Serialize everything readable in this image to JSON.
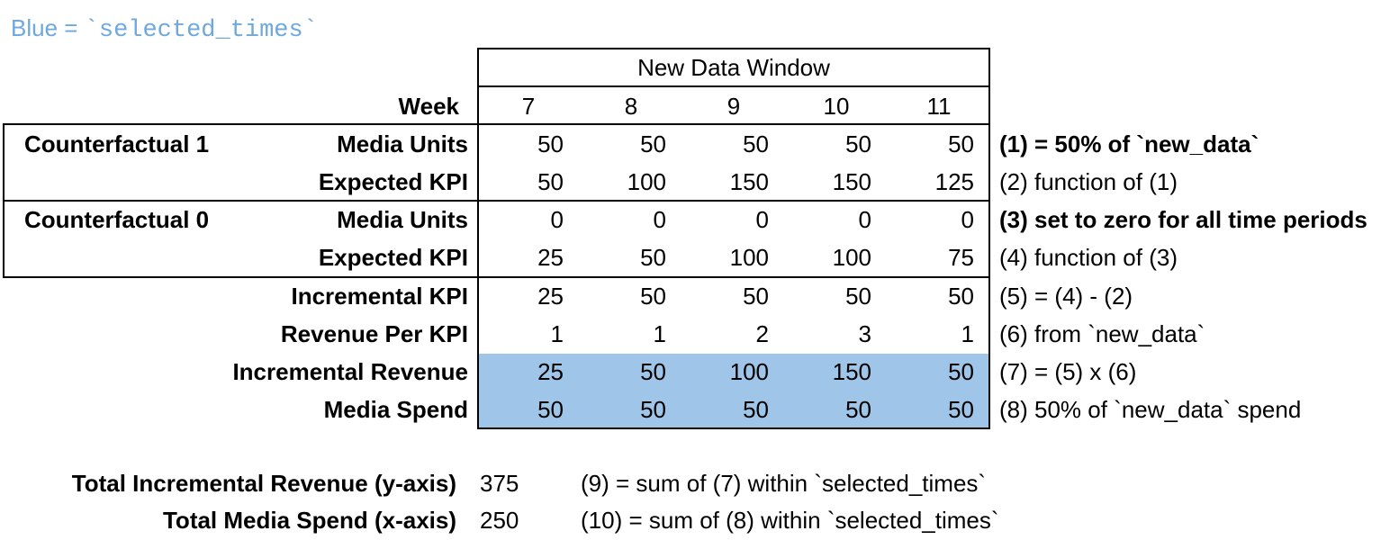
{
  "legend": {
    "prefix": "Blue = ",
    "code": "`selected_times`"
  },
  "colors": {
    "highlight": "#9fc5e8",
    "legend_text": "#6fa8dc",
    "border": "#000000"
  },
  "table": {
    "window_title": "New Data Window",
    "week_label": "Week",
    "weeks": [
      "7",
      "8",
      "9",
      "10",
      "11"
    ],
    "rows": [
      {
        "group": "Counterfactual 1",
        "label": "Media Units",
        "values": [
          "50",
          "50",
          "50",
          "50",
          "50"
        ],
        "note": "(1) = 50% of `new_data`",
        "note_bold": true,
        "highlight": false
      },
      {
        "group": "",
        "label": "Expected KPI",
        "values": [
          "50",
          "100",
          "150",
          "150",
          "125"
        ],
        "note": "(2) function of (1)",
        "note_bold": false,
        "highlight": false
      },
      {
        "group": "Counterfactual 0",
        "label": "Media Units",
        "values": [
          "0",
          "0",
          "0",
          "0",
          "0"
        ],
        "note": "(3) set to zero for all time periods",
        "note_bold": true,
        "highlight": false
      },
      {
        "group": "",
        "label": "Expected KPI",
        "values": [
          "25",
          "50",
          "100",
          "100",
          "75"
        ],
        "note": "(4) function of (3)",
        "note_bold": false,
        "highlight": false
      },
      {
        "group": "",
        "label": "Incremental KPI",
        "values": [
          "25",
          "50",
          "50",
          "50",
          "50"
        ],
        "note": "(5) = (4) - (2)",
        "note_bold": false,
        "highlight": false
      },
      {
        "group": "",
        "label": "Revenue Per KPI",
        "values": [
          "1",
          "1",
          "2",
          "3",
          "1"
        ],
        "note": "(6) from `new_data`",
        "note_bold": false,
        "highlight": false
      },
      {
        "group": "",
        "label": "Incremental Revenue",
        "values": [
          "25",
          "50",
          "100",
          "150",
          "50"
        ],
        "note": "(7) = (5) x (6)",
        "note_bold": false,
        "highlight": true
      },
      {
        "group": "",
        "label": "Media Spend",
        "values": [
          "50",
          "50",
          "50",
          "50",
          "50"
        ],
        "note": "(8) 50% of `new_data` spend",
        "note_bold": false,
        "highlight": true
      }
    ]
  },
  "totals": [
    {
      "label": "Total Incremental Revenue (y-axis)",
      "value": "375",
      "note": "(9) = sum of (7) within `selected_times`"
    },
    {
      "label": "Total Media Spend (x-axis)",
      "value": "250",
      "note": "(10) = sum of (8) within `selected_times`"
    }
  ],
  "chart_data": {
    "type": "table",
    "title": "New Data Window",
    "columns": [
      "Week 7",
      "Week 8",
      "Week 9",
      "Week 10",
      "Week 11"
    ],
    "rows": [
      {
        "name": "Counterfactual 1 Media Units",
        "values": [
          50,
          50,
          50,
          50,
          50
        ]
      },
      {
        "name": "Counterfactual 1 Expected KPI",
        "values": [
          50,
          100,
          150,
          150,
          125
        ]
      },
      {
        "name": "Counterfactual 0 Media Units",
        "values": [
          0,
          0,
          0,
          0,
          0
        ]
      },
      {
        "name": "Counterfactual 0 Expected KPI",
        "values": [
          25,
          50,
          100,
          100,
          75
        ]
      },
      {
        "name": "Incremental KPI",
        "values": [
          25,
          50,
          50,
          50,
          50
        ]
      },
      {
        "name": "Revenue Per KPI",
        "values": [
          1,
          1,
          2,
          3,
          1
        ]
      },
      {
        "name": "Incremental Revenue",
        "values": [
          25,
          50,
          100,
          150,
          50
        ]
      },
      {
        "name": "Media Spend",
        "values": [
          50,
          50,
          50,
          50,
          50
        ]
      }
    ],
    "totals": {
      "total_incremental_revenue_y_axis": 375,
      "total_media_spend_x_axis": 250
    },
    "highlighted_rows": [
      "Incremental Revenue",
      "Media Spend"
    ],
    "highlight_meaning": "selected_times"
  }
}
